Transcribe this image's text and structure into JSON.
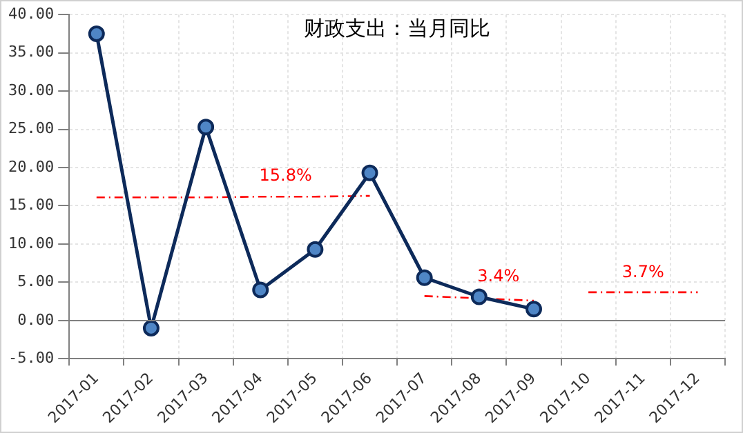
{
  "chart_data": {
    "type": "line",
    "title": "财政支出：当月同比",
    "categories": [
      "2017-01",
      "2017-02",
      "2017-03",
      "2017-04",
      "2017-05",
      "2017-06",
      "2017-07",
      "2017-08",
      "2017-09",
      "2017-10",
      "2017-11",
      "2017-12"
    ],
    "series": [
      {
        "color": "#0d2a5a",
        "values": [
          37.5,
          -1.0,
          25.3,
          4.0,
          9.3,
          19.3,
          5.6,
          3.1,
          1.5,
          null,
          null,
          null
        ],
        "marker": "circle",
        "line_style": "solid"
      },
      {
        "type": "line",
        "color": "#ff0000",
        "values": [
          16.1,
          16.1,
          16.1,
          16.2,
          16.2,
          16.3,
          null,
          null,
          null,
          null,
          null,
          null
        ],
        "marker": "none",
        "line_style": "dashed"
      },
      {
        "type": "line",
        "color": "#ff0000",
        "values": [
          null,
          null,
          null,
          null,
          null,
          null,
          3.2,
          2.9,
          2.6,
          null,
          null,
          null
        ],
        "marker": "none",
        "line_style": "dashed"
      },
      {
        "type": "line",
        "color": "#ff0000",
        "values": [
          null,
          null,
          null,
          null,
          null,
          null,
          null,
          null,
          null,
          3.7,
          3.7,
          3.7
        ],
        "marker": "none",
        "line_style": "dashed"
      }
    ],
    "ylim": [
      -5,
      40
    ],
    "yticks": [
      {
        "value": -5,
        "label": "-5.00"
      },
      {
        "value": 0,
        "label": "0.00"
      },
      {
        "value": 5,
        "label": "5.00"
      },
      {
        "value": 10,
        "label": "10.00"
      },
      {
        "value": 15,
        "label": "15.00"
      },
      {
        "value": 20,
        "label": "20.00"
      },
      {
        "value": 25,
        "label": "25.00"
      },
      {
        "value": 30,
        "label": "30.00"
      },
      {
        "value": 35,
        "label": "35.00"
      },
      {
        "value": 40,
        "label": "40.00"
      }
    ],
    "annotations": [
      "15.8%",
      "3.4%",
      "3.7%"
    ],
    "ref_lines": [
      {
        "axis": "y",
        "value": 0,
        "color": "#808080"
      }
    ],
    "grid": true,
    "legend": false
  }
}
